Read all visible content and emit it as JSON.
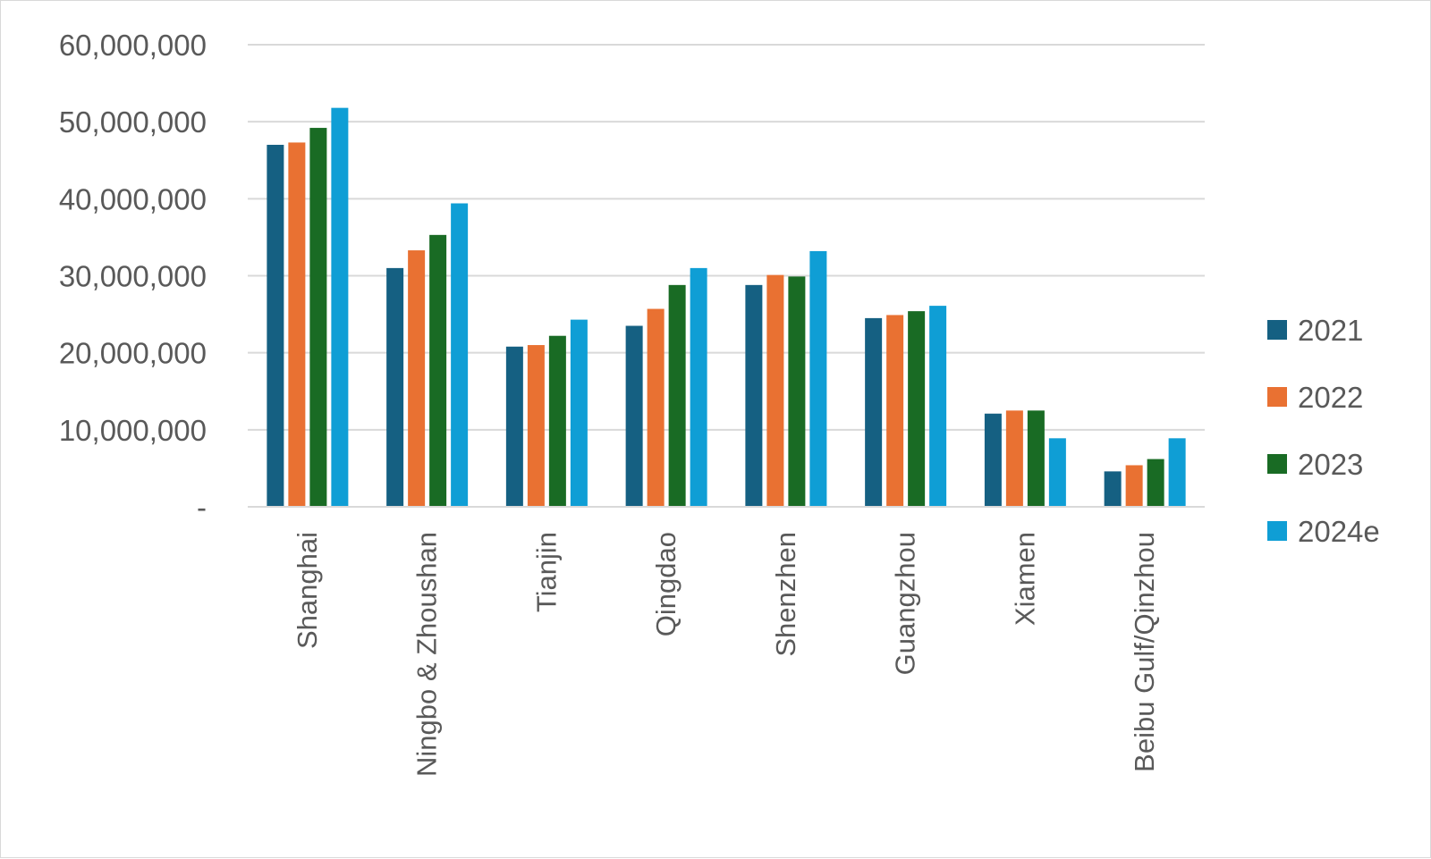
{
  "chart_data": {
    "type": "bar",
    "title": "",
    "xlabel": "",
    "ylabel": "",
    "ylim": [
      0,
      60000000
    ],
    "yticks": [
      0,
      10000000,
      20000000,
      30000000,
      40000000,
      50000000,
      60000000
    ],
    "ytick_labels": [
      "-",
      "10,000,000",
      "20,000,000",
      "30,000,000",
      "40,000,000",
      "50,000,000",
      "60,000,000"
    ],
    "grid": true,
    "legend_position": "right",
    "categories": [
      "Shanghai",
      "Ningbo & Zhoushan",
      "Tianjin",
      "Qingdao",
      "Shenzhen",
      "Guangzhou",
      "Xiamen",
      "Beibu Gulf/Qinzhou"
    ],
    "series": [
      {
        "name": "2021",
        "color": "#156082",
        "values": [
          47000000,
          31000000,
          20800000,
          23500000,
          28800000,
          24500000,
          12100000,
          4600000
        ]
      },
      {
        "name": "2022",
        "color": "#E97132",
        "values": [
          47300000,
          33300000,
          21000000,
          25700000,
          30100000,
          24900000,
          12500000,
          5400000
        ]
      },
      {
        "name": "2023",
        "color": "#196B24",
        "values": [
          49200000,
          35300000,
          22200000,
          28800000,
          29900000,
          25400000,
          12500000,
          6200000
        ]
      },
      {
        "name": "2024e",
        "color": "#0F9ED5",
        "values": [
          51800000,
          39400000,
          24300000,
          31000000,
          33200000,
          26100000,
          8900000,
          8900000
        ]
      }
    ]
  }
}
